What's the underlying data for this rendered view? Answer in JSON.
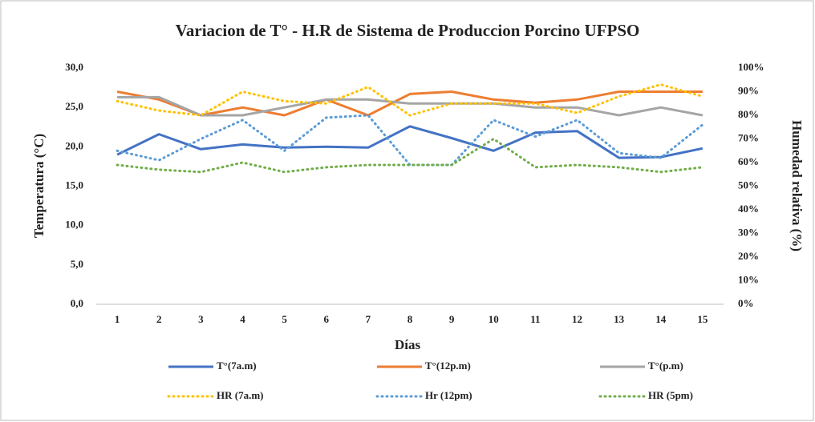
{
  "chart_data": {
    "type": "line",
    "title": "Variacion de T° - H.R de Sistema de Produccion Porcino UFPSO",
    "x_label": "Días",
    "y_label": "Temperatura (°C)",
    "y2_label": "Humedad relativa (%)",
    "categories": [
      "1",
      "2",
      "3",
      "4",
      "5",
      "6",
      "7",
      "8",
      "9",
      "10",
      "11",
      "12",
      "13",
      "14",
      "15"
    ],
    "ylim": [
      0,
      30
    ],
    "yticks": [
      {
        "value": 0,
        "label": "0,0"
      },
      {
        "value": 5,
        "label": "5,0"
      },
      {
        "value": 10,
        "label": "10,0"
      },
      {
        "value": 15,
        "label": "15,0"
      },
      {
        "value": 20,
        "label": "20,0"
      },
      {
        "value": 25,
        "label": "25,0"
      },
      {
        "value": 30,
        "label": "30,0"
      }
    ],
    "y2lim": [
      0,
      100
    ],
    "y2ticks": [
      {
        "value": 0,
        "label": "0%"
      },
      {
        "value": 10,
        "label": "10%"
      },
      {
        "value": 20,
        "label": "20%"
      },
      {
        "value": 30,
        "label": "30%"
      },
      {
        "value": 40,
        "label": "40%"
      },
      {
        "value": 50,
        "label": "50%"
      },
      {
        "value": 60,
        "label": "60%"
      },
      {
        "value": 70,
        "label": "70%"
      },
      {
        "value": 80,
        "label": "80%"
      },
      {
        "value": 90,
        "label": "90%"
      },
      {
        "value": 100,
        "label": "100%"
      }
    ],
    "legend": "bottom",
    "series": [
      {
        "name": "T°(7a.m)",
        "color": "#4472c4",
        "dash": false,
        "values": [
          19.0,
          21.6,
          19.7,
          20.3,
          19.9,
          20.0,
          19.9,
          22.6,
          21.1,
          19.5,
          21.8,
          22.0,
          18.6,
          18.7,
          19.8
        ]
      },
      {
        "name": "T°(12p.m)",
        "color": "#ed7d31",
        "dash": false,
        "values": [
          27.0,
          26.0,
          24.0,
          25.0,
          24.0,
          26.0,
          24.0,
          26.7,
          27.0,
          26.0,
          25.6,
          26.0,
          27.0,
          27.0,
          27.0
        ]
      },
      {
        "name": "T°(p.m)",
        "color": "#a5a5a5",
        "dash": false,
        "values": [
          26.3,
          26.3,
          24.0,
          24.0,
          25.0,
          26.0,
          26.0,
          25.5,
          25.5,
          25.5,
          25.0,
          25.0,
          24.0,
          25.0,
          24.0
        ]
      },
      {
        "name": "HR (7a.m)",
        "color": "#ffc000",
        "dash": true,
        "axis": "y2",
        "values": [
          86,
          82,
          80,
          90,
          86,
          85,
          92,
          80,
          85,
          85,
          85,
          81,
          88,
          93,
          88
        ]
      },
      {
        "name": "Hr (12pm)",
        "color": "#5b9bd5",
        "dash": true,
        "axis": "y2",
        "values": [
          65,
          61,
          70,
          78,
          65,
          79,
          80,
          59,
          59,
          78,
          71,
          78,
          64,
          62,
          76
        ]
      },
      {
        "name": "HR (5pm)",
        "color": "#70ad47",
        "dash": true,
        "axis": "y2",
        "values": [
          59,
          57,
          56,
          60,
          56,
          58,
          59,
          59,
          59,
          70,
          58,
          59,
          58,
          56,
          58
        ]
      }
    ]
  }
}
